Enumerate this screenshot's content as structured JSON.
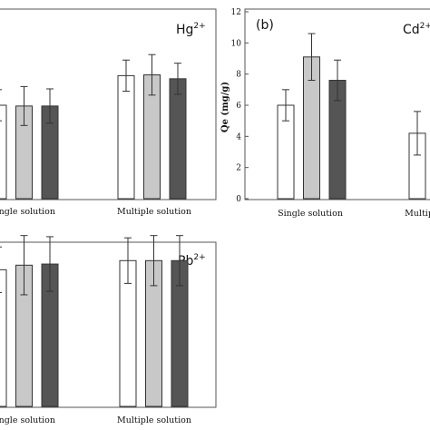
{
  "chart_data": [
    {
      "type": "bar",
      "panel": "",
      "ion_base": "Hg",
      "ion_charge": "2+",
      "categories": [
        "Single solution",
        "Multiple solution"
      ],
      "series": [
        {
          "color": "#ffffff",
          "values": [
            6.0,
            7.9
          ],
          "errors": [
            1.0,
            1.0
          ]
        },
        {
          "color": "#c8c8c8",
          "values": [
            5.95,
            7.95
          ],
          "errors": [
            1.25,
            1.3
          ]
        },
        {
          "color": "#555555",
          "values": [
            5.95,
            7.7
          ],
          "errors": [
            1.1,
            1.0
          ]
        }
      ],
      "ylim": [
        0,
        12
      ],
      "yticks": [],
      "ylabel": ""
    },
    {
      "type": "bar",
      "panel": "(b)",
      "ion_base": "Cd",
      "ion_charge": "2+",
      "categories": [
        "Single solution",
        "Multip"
      ],
      "series": [
        {
          "color": "#ffffff",
          "values": [
            6.0,
            4.2
          ],
          "errors": [
            1.0,
            1.4
          ]
        },
        {
          "color": "#c8c8c8",
          "values": [
            9.1,
            null
          ],
          "errors": [
            1.5,
            null
          ]
        },
        {
          "color": "#555555",
          "values": [
            7.6,
            null
          ],
          "errors": [
            1.3,
            null
          ]
        }
      ],
      "ylim": [
        0,
        12
      ],
      "yticks": [
        "0",
        "2",
        "4",
        "6",
        "8",
        "10",
        "12"
      ],
      "ylabel": "Qe (mg/g)"
    },
    {
      "type": "bar",
      "panel": "",
      "ion_base": "Pb",
      "ion_charge": "2+",
      "categories": [
        "Single solution",
        "Multiple solution"
      ],
      "series": [
        {
          "color": "#ffffff",
          "values": [
            6.0,
            6.4
          ],
          "errors": [
            1.0,
            1.0
          ]
        },
        {
          "color": "#c8c8c8",
          "values": [
            6.2,
            6.4
          ],
          "errors": [
            1.3,
            1.1
          ]
        },
        {
          "color": "#555555",
          "values": [
            6.25,
            6.4
          ],
          "errors": [
            1.2,
            1.1
          ]
        }
      ],
      "ylim": [
        0,
        9
      ],
      "yticks": [],
      "ylabel": ""
    }
  ]
}
